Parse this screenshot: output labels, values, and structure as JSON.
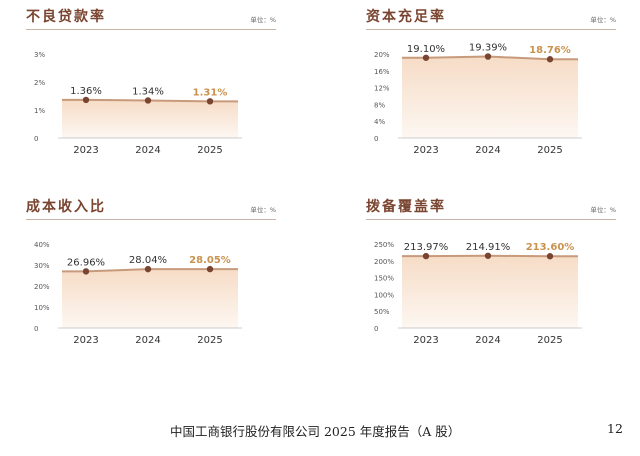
{
  "chart_data": [
    {
      "type": "area",
      "title": "不良贷款率",
      "unit_label": "单位：%",
      "categories": [
        "2023",
        "2024",
        "2025"
      ],
      "values": [
        1.36,
        1.34,
        1.31
      ],
      "labels": [
        "1.36%",
        "1.34%",
        "1.31%"
      ],
      "yticks": [
        "0",
        "1%",
        "2%",
        "3%"
      ],
      "tick_values": [
        0,
        1,
        2,
        3
      ],
      "ylim": [
        0,
        3
      ],
      "highlight_last": true
    },
    {
      "type": "area",
      "title": "资本充足率",
      "unit_label": "单位：%",
      "categories": [
        "2023",
        "2024",
        "2025"
      ],
      "values": [
        19.1,
        19.39,
        18.76
      ],
      "labels": [
        "19.10%",
        "19.39%",
        "18.76%"
      ],
      "yticks": [
        "0",
        "4%",
        "8%",
        "12%",
        "16%",
        "20%"
      ],
      "tick_values": [
        0,
        4,
        8,
        12,
        16,
        20
      ],
      "ylim": [
        0,
        20
      ],
      "highlight_last": true
    },
    {
      "type": "area",
      "title": "成本收入比",
      "unit_label": "单位：%",
      "categories": [
        "2023",
        "2024",
        "2025"
      ],
      "values": [
        26.96,
        28.04,
        28.05
      ],
      "labels": [
        "26.96%",
        "28.04%",
        "28.05%"
      ],
      "yticks": [
        "0",
        "10%",
        "20%",
        "30%",
        "40%"
      ],
      "tick_values": [
        0,
        10,
        20,
        30,
        40
      ],
      "ylim": [
        0,
        40
      ],
      "highlight_last": true
    },
    {
      "type": "area",
      "title": "拨备覆盖率",
      "unit_label": "单位：%",
      "categories": [
        "2023",
        "2024",
        "2025"
      ],
      "values": [
        213.97,
        214.91,
        213.6
      ],
      "labels": [
        "213.97%",
        "214.91%",
        "213.60%"
      ],
      "yticks": [
        "0",
        "50%",
        "100%",
        "150%",
        "200%",
        "250%"
      ],
      "tick_values": [
        0,
        50,
        100,
        150,
        200,
        250
      ],
      "ylim": [
        0,
        250
      ],
      "highlight_last": true
    }
  ],
  "colors": {
    "line": "#c79a7c",
    "marker": "#7a4530",
    "fill_top": "#f6dcc6",
    "fill_bottom": "#fdf7f2",
    "highlight_label": "#c9924f",
    "title": "#7a4530"
  },
  "footer": {
    "text": "中国工商银行股份有限公司 2025 年度报告（A 股）",
    "page_number": "12"
  }
}
